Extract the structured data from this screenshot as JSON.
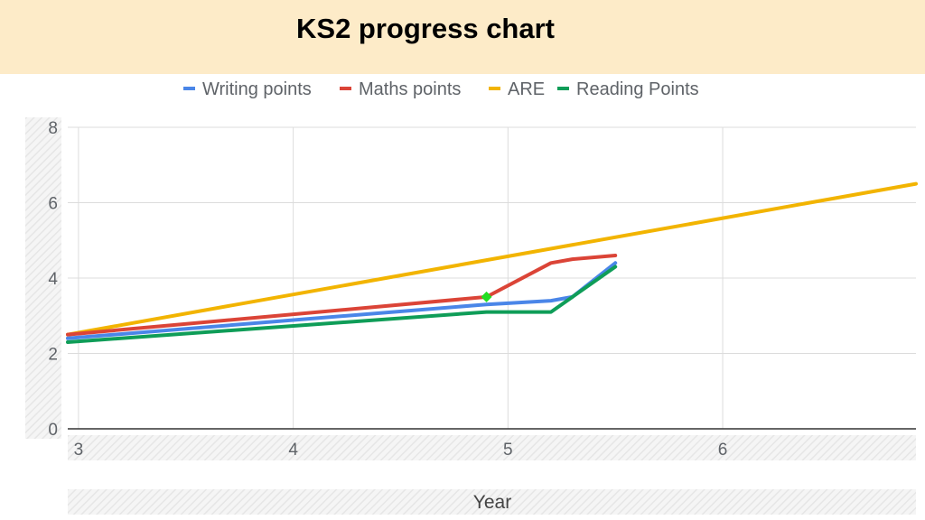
{
  "page": {
    "title": "KS2 progress chart"
  },
  "chart_data": {
    "type": "line",
    "title": "",
    "xlabel": "Year",
    "ylabel": "",
    "xlim": [
      2.95,
      6.9
    ],
    "ylim": [
      0,
      8
    ],
    "x_ticks": [
      3,
      4,
      5,
      6
    ],
    "y_ticks": [
      0,
      2,
      4,
      6,
      8
    ],
    "grid": true,
    "legend_position": "top",
    "series": [
      {
        "name": "Writing points",
        "color": "#4a86e8",
        "points": [
          [
            2.95,
            2.4
          ],
          [
            4.9,
            3.3
          ],
          [
            5.2,
            3.4
          ],
          [
            5.3,
            3.5
          ],
          [
            5.5,
            4.4
          ]
        ]
      },
      {
        "name": "Maths points",
        "color": "#db4437",
        "points": [
          [
            2.95,
            2.5
          ],
          [
            4.9,
            3.5
          ],
          [
            5.2,
            4.4
          ],
          [
            5.3,
            4.5
          ],
          [
            5.5,
            4.6
          ]
        ]
      },
      {
        "name": "ARE",
        "color": "#f2b400",
        "points": [
          [
            2.95,
            2.5
          ],
          [
            6.9,
            6.5
          ]
        ]
      },
      {
        "name": "Reading Points",
        "color": "#0f9d58",
        "points": [
          [
            2.95,
            2.3
          ],
          [
            4.9,
            3.1
          ],
          [
            5.2,
            3.1
          ],
          [
            5.5,
            4.3
          ]
        ]
      }
    ],
    "markers": [
      {
        "x": 4.9,
        "y": 3.5,
        "color": "#22dd22"
      }
    ]
  }
}
